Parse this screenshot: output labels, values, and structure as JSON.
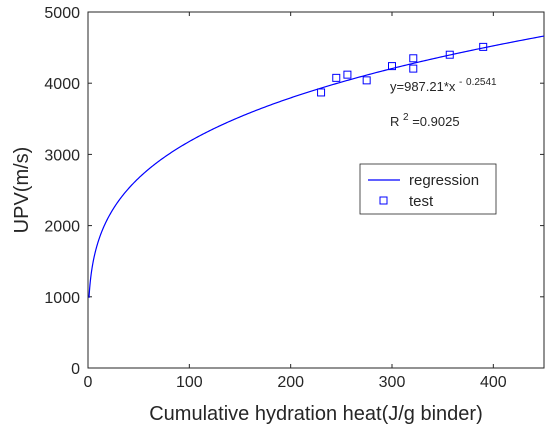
{
  "chart_data": {
    "type": "scatter",
    "xlabel": "Cumulative hydration heat(J/g binder)",
    "ylabel": "UPV(m/s)",
    "xlim": [
      0,
      450
    ],
    "ylim": [
      0,
      5000
    ],
    "xticks": [
      0,
      100,
      200,
      300,
      400
    ],
    "yticks": [
      0,
      1000,
      2000,
      3000,
      4000,
      5000
    ],
    "grid": false,
    "legend_position": "middle-right",
    "series": [
      {
        "name": "regression",
        "kind": "line",
        "color": "#0000ff",
        "model": {
          "form": "power",
          "a": 987.21,
          "b": 0.2541
        }
      },
      {
        "name": "test",
        "kind": "scatter",
        "marker": "square",
        "color": "#0000ff",
        "points": [
          [
            230,
            3870
          ],
          [
            245,
            4075
          ],
          [
            256,
            4120
          ],
          [
            275,
            4040
          ],
          [
            300,
            4240
          ],
          [
            321,
            4350
          ],
          [
            321,
            4205
          ],
          [
            357,
            4400
          ],
          [
            390,
            4510
          ]
        ]
      }
    ],
    "annotations": {
      "equation_base": "y=987.21*x",
      "equation_exponent": "0.2541",
      "r2_prefix": "R",
      "r2_power": "2",
      "r2_value": "=0.9025"
    }
  }
}
